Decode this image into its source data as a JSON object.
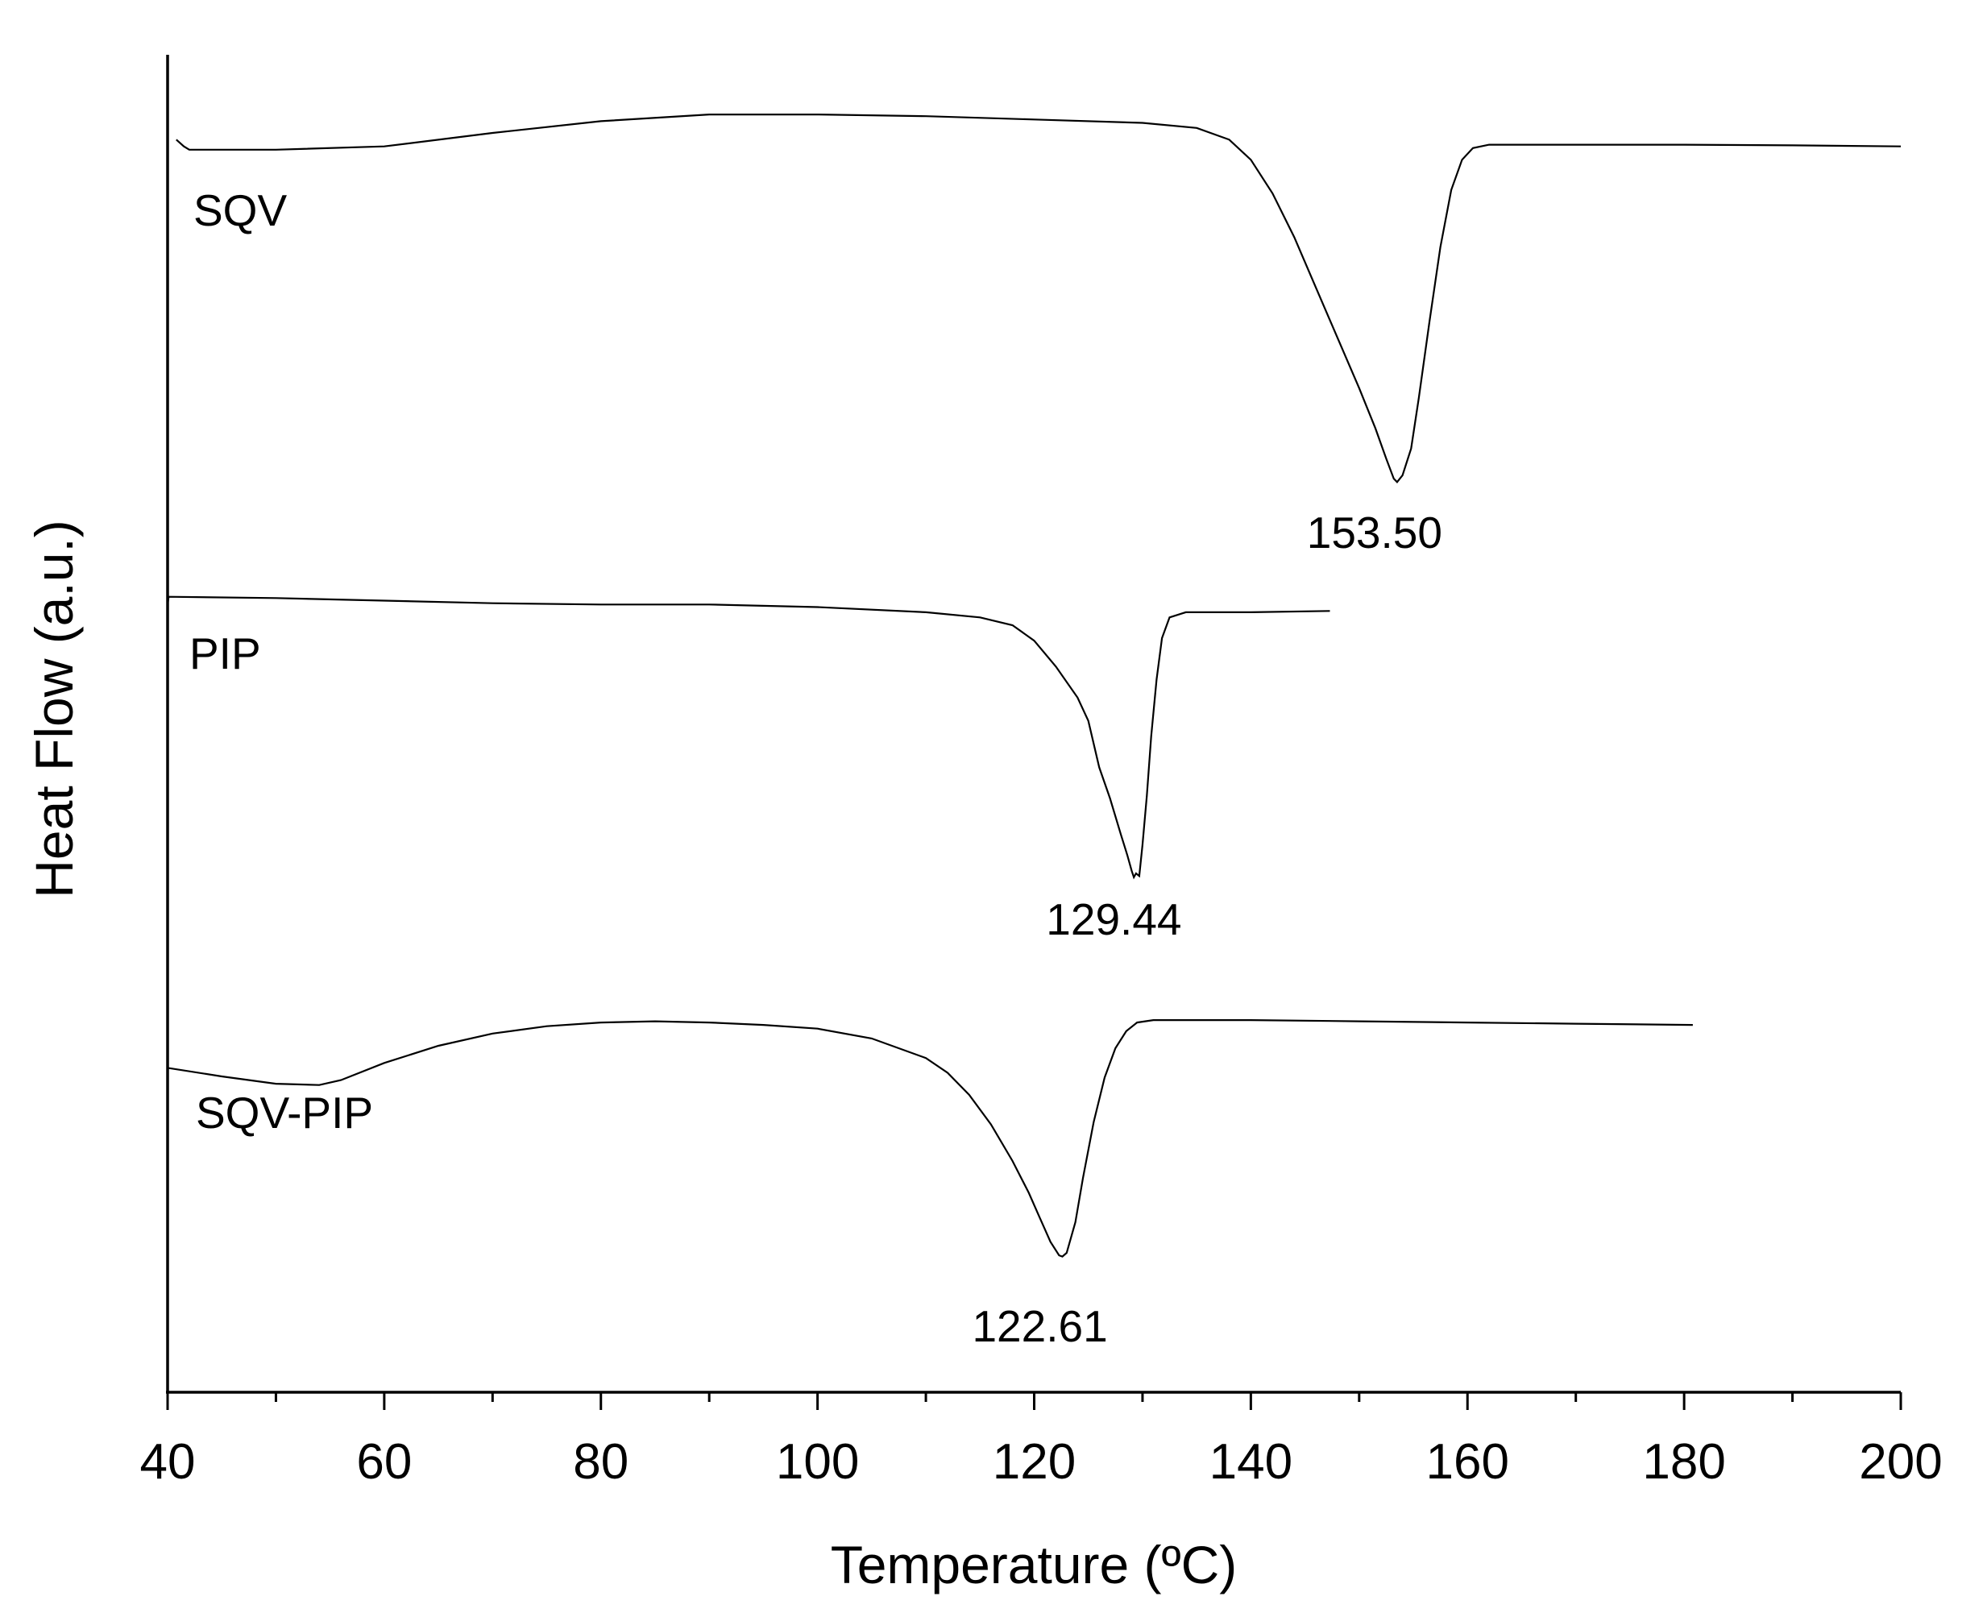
{
  "chart_data": {
    "type": "line",
    "title": "",
    "xlabel": "Temperature (ºC)",
    "ylabel": "Heat Flow (a.u.)",
    "xlim": [
      40,
      200
    ],
    "x_ticks": [
      40,
      60,
      80,
      100,
      120,
      140,
      160,
      180,
      200
    ],
    "grid": false,
    "legend": "none",
    "line_color": "#000000",
    "series": [
      {
        "name": "SQV",
        "peak_label": "153.50",
        "peak_x": 153.5,
        "points": [
          [
            40.8,
            11.2
          ],
          [
            41.5,
            11.0
          ],
          [
            42,
            10.9
          ],
          [
            50,
            10.9
          ],
          [
            60,
            11.0
          ],
          [
            70,
            11.4
          ],
          [
            80,
            11.75
          ],
          [
            90,
            11.95
          ],
          [
            100,
            11.95
          ],
          [
            110,
            11.9
          ],
          [
            120,
            11.8
          ],
          [
            130,
            11.7
          ],
          [
            135,
            11.55
          ],
          [
            138,
            11.2
          ],
          [
            140,
            10.6
          ],
          [
            142,
            9.6
          ],
          [
            144,
            8.3
          ],
          [
            146,
            6.8
          ],
          [
            148,
            5.3
          ],
          [
            150,
            3.8
          ],
          [
            151.5,
            2.6
          ],
          [
            152.5,
            1.7
          ],
          [
            153.2,
            1.1
          ],
          [
            153.5,
            1.0
          ],
          [
            154,
            1.2
          ],
          [
            154.8,
            2.0
          ],
          [
            155.5,
            3.5
          ],
          [
            156.5,
            5.8
          ],
          [
            157.5,
            8.0
          ],
          [
            158.5,
            9.7
          ],
          [
            159.5,
            10.6
          ],
          [
            160.5,
            10.95
          ],
          [
            162,
            11.05
          ],
          [
            170,
            11.05
          ],
          [
            180,
            11.05
          ],
          [
            190,
            11.03
          ],
          [
            200,
            11.0
          ]
        ]
      },
      {
        "name": "PIP",
        "peak_label": "129.44",
        "peak_x": 129.44,
        "points": [
          [
            40,
            10.9
          ],
          [
            40.1,
            11.2
          ],
          [
            50,
            11.15
          ],
          [
            60,
            11.05
          ],
          [
            70,
            10.95
          ],
          [
            80,
            10.9
          ],
          [
            90,
            10.9
          ],
          [
            100,
            10.8
          ],
          [
            110,
            10.6
          ],
          [
            115,
            10.4
          ],
          [
            118,
            10.1
          ],
          [
            120,
            9.5
          ],
          [
            122,
            8.5
          ],
          [
            124,
            7.3
          ],
          [
            125,
            6.4
          ],
          [
            126,
            4.6
          ],
          [
            127,
            3.4
          ],
          [
            128,
            2.0
          ],
          [
            128.6,
            1.2
          ],
          [
            129,
            0.6
          ],
          [
            129.2,
            0.35
          ],
          [
            129.4,
            0.5
          ],
          [
            129.7,
            0.4
          ],
          [
            130,
            1.6
          ],
          [
            130.4,
            3.5
          ],
          [
            130.8,
            5.8
          ],
          [
            131.3,
            8.0
          ],
          [
            131.8,
            9.6
          ],
          [
            132.5,
            10.4
          ],
          [
            134,
            10.6
          ],
          [
            140,
            10.6
          ],
          [
            147.3,
            10.65
          ]
        ]
      },
      {
        "name": "SQV-PIP",
        "peak_label": "122.61",
        "peak_x": 122.61,
        "points": [
          [
            40,
            8.7
          ],
          [
            45,
            8.35
          ],
          [
            50,
            8.05
          ],
          [
            54,
            8.0
          ],
          [
            56,
            8.2
          ],
          [
            60,
            8.9
          ],
          [
            65,
            9.6
          ],
          [
            70,
            10.1
          ],
          [
            75,
            10.4
          ],
          [
            80,
            10.55
          ],
          [
            85,
            10.6
          ],
          [
            90,
            10.55
          ],
          [
            95,
            10.45
          ],
          [
            100,
            10.3
          ],
          [
            105,
            9.9
          ],
          [
            110,
            9.1
          ],
          [
            112,
            8.5
          ],
          [
            114,
            7.6
          ],
          [
            116,
            6.4
          ],
          [
            118,
            4.9
          ],
          [
            119.5,
            3.6
          ],
          [
            120.5,
            2.6
          ],
          [
            121.5,
            1.6
          ],
          [
            122.3,
            1.05
          ],
          [
            122.6,
            1.0
          ],
          [
            123,
            1.15
          ],
          [
            123.8,
            2.4
          ],
          [
            124.5,
            4.2
          ],
          [
            125.5,
            6.5
          ],
          [
            126.5,
            8.3
          ],
          [
            127.5,
            9.5
          ],
          [
            128.5,
            10.2
          ],
          [
            129.5,
            10.55
          ],
          [
            131,
            10.65
          ],
          [
            140,
            10.65
          ],
          [
            150,
            10.6
          ],
          [
            160,
            10.55
          ],
          [
            170,
            10.5
          ],
          [
            180.8,
            10.45
          ]
        ]
      }
    ]
  }
}
